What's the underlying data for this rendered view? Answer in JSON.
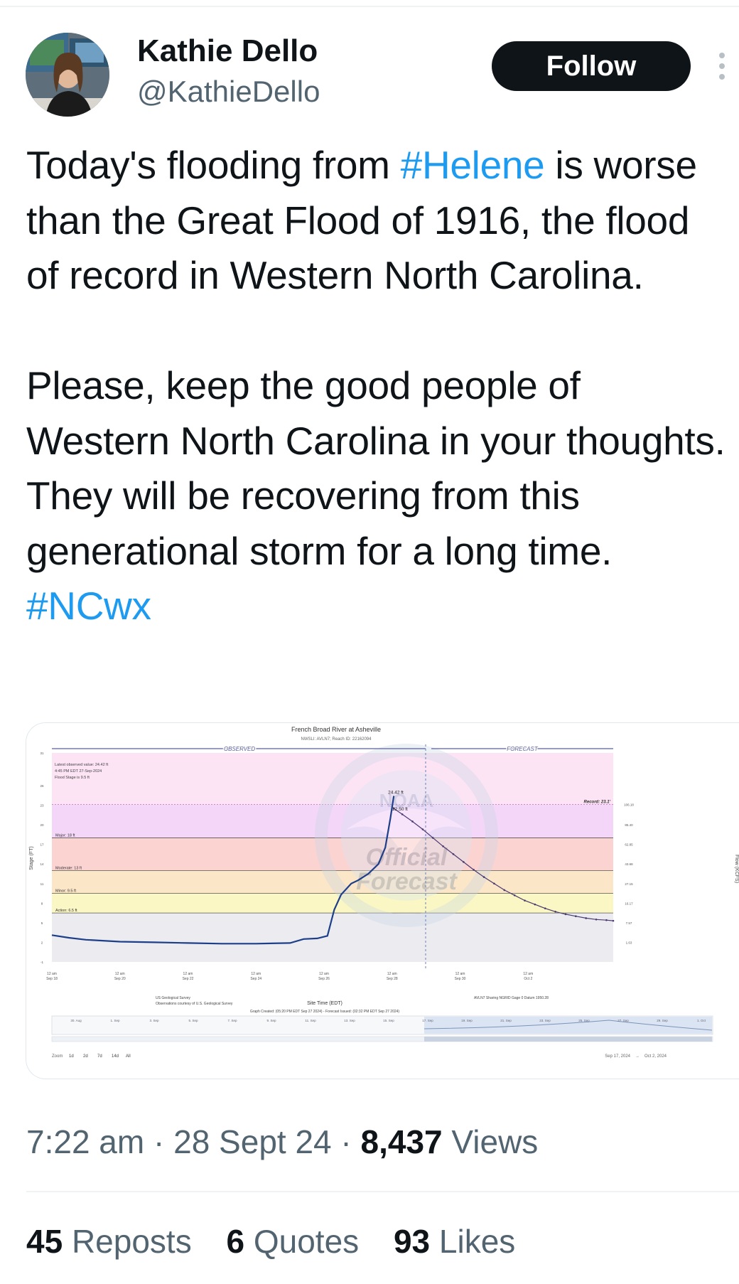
{
  "author": {
    "name": "Kathie Dello",
    "handle": "@KathieDello"
  },
  "follow_label": "Follow",
  "tweet": {
    "p1": {
      "t1": "Today's flooding from ",
      "tag1": "#Helene",
      "t2": " is worse than the Great Flood of 1916, the flood of record in Western North Carolina."
    },
    "p2": {
      "t1": "Please, keep the good people of Western North Carolina in your thoughts. They will be recovering from this generational storm for a long time. ",
      "tag2": "#NCwx"
    }
  },
  "hydrograph": {
    "title": "French Broad River at Asheville",
    "subtitle": "NWSLI: AVLN7; Reach ID: 22162094",
    "observed_label": "OBSERVED",
    "forecast_label": "FORECAST",
    "latest_box": [
      "Latest observed value: 24.42 ft",
      "4:45 PM EDT 27-Sep-2024",
      "Flood Stage is 9.5 ft"
    ],
    "ylabel_left": "Stage (FT)",
    "ylabel_right": "Flow (KCFS)",
    "stage_ticks": [
      "31",
      "26",
      "23",
      "20",
      "17",
      "14",
      "11",
      "8",
      "5",
      "2",
      "-1"
    ],
    "flow_ticks": [
      "106.18",
      "85.40",
      "62.85",
      "43.68",
      "27.15",
      "16.17",
      "7.57",
      "1.63"
    ],
    "categories": [
      {
        "name": "Record",
        "label": "Record: 23.1'",
        "value": 23.1,
        "color": "#fce4f5"
      },
      {
        "name": "Major",
        "label": "Major: 18 ft",
        "value": 18,
        "color": "#f3d6f8"
      },
      {
        "name": "Moderate",
        "label": "Moderate: 13 ft",
        "value": 13,
        "color": "#fbd4d2"
      },
      {
        "name": "Minor",
        "label": "Minor: 9.5 ft",
        "value": 9.5,
        "color": "#fbe6c7"
      },
      {
        "name": "Action",
        "label": "Action: 6.5 ft",
        "value": 6.5,
        "color": "#fbf7c4"
      }
    ],
    "x_ticks": [
      [
        "12 am",
        "Sep 18"
      ],
      [
        "12 am",
        "Sep 20"
      ],
      [
        "12 am",
        "Sep 22"
      ],
      [
        "12 am",
        "Sep 24"
      ],
      [
        "12 am",
        "Sep 26"
      ],
      [
        "12 am",
        "Sep 28"
      ],
      [
        "12 am",
        "Sep 30"
      ],
      [
        "12 am",
        "Oct 2"
      ]
    ],
    "peak_label": "24.42 ft",
    "forecast_peak_label": "22.50 ft",
    "xlabel": "Site Time (EDT)",
    "credit_left": "US Geological Survey",
    "credit_left2": "Observations courtesy of U.S. Geological Survey",
    "credit_right": "AVLN7 Sharing NGRID Gage 0 Datum 1950.28",
    "graph_created": "Graph Created: (05:20 PM EDT Sep 27 2024) - Forecast Issued: (02:32 PM EDT Sep 27 2024)",
    "watermark": [
      "NOAA",
      "Official",
      "Forecast"
    ],
    "nav_dates": [
      "30. Aug",
      "1. Sep",
      "3. Sep",
      "5. Sep",
      "7. Sep",
      "9. Sep",
      "11. Sep",
      "13. Sep",
      "15. Sep",
      "17. Sep",
      "19. Sep",
      "21. Sep",
      "23. Sep",
      "25. Sep",
      "27. Sep",
      "29. Sep",
      "1. Oct"
    ],
    "zoom_label": "Zoom",
    "zoom_options": [
      "1d",
      "2d",
      "7d",
      "14d",
      "All"
    ],
    "range_start": "Sep 17, 2024",
    "range_sep": "→",
    "range_end": "Oct 2, 2024"
  },
  "chart_data": {
    "type": "line",
    "title": "French Broad River at Asheville",
    "xlabel": "Site Time (EDT)",
    "ylabel": "Stage (FT)",
    "ylim": [
      -1,
      31
    ],
    "observed": [
      {
        "day": 0,
        "stage": 3.1
      },
      {
        "day": 0.5,
        "stage": 2.7
      },
      {
        "day": 1,
        "stage": 2.4
      },
      {
        "day": 2,
        "stage": 2.1
      },
      {
        "day": 3,
        "stage": 2.0
      },
      {
        "day": 4,
        "stage": 1.9
      },
      {
        "day": 5,
        "stage": 1.8
      },
      {
        "day": 6,
        "stage": 1.8
      },
      {
        "day": 7,
        "stage": 1.9
      },
      {
        "day": 7.4,
        "stage": 2.5
      },
      {
        "day": 7.8,
        "stage": 2.6
      },
      {
        "day": 8.1,
        "stage": 3.0
      },
      {
        "day": 8.3,
        "stage": 7.0
      },
      {
        "day": 8.5,
        "stage": 9.3
      },
      {
        "day": 8.8,
        "stage": 11.0
      },
      {
        "day": 9.0,
        "stage": 11.5
      },
      {
        "day": 9.3,
        "stage": 12.5
      },
      {
        "day": 9.6,
        "stage": 14.0
      },
      {
        "day": 9.8,
        "stage": 16.5
      },
      {
        "day": 9.95,
        "stage": 21.0
      },
      {
        "day": 10.05,
        "stage": 24.42
      }
    ],
    "forecast": [
      {
        "day": 10.05,
        "stage": 22.5
      },
      {
        "day": 10.3,
        "stage": 21.6
      },
      {
        "day": 10.6,
        "stage": 20.5
      },
      {
        "day": 10.9,
        "stage": 19.3
      },
      {
        "day": 11.2,
        "stage": 18.0
      },
      {
        "day": 11.5,
        "stage": 16.7
      },
      {
        "day": 11.8,
        "stage": 15.5
      },
      {
        "day": 12.1,
        "stage": 14.3
      },
      {
        "day": 12.4,
        "stage": 13.1
      },
      {
        "day": 12.7,
        "stage": 12.0
      },
      {
        "day": 13.0,
        "stage": 11.0
      },
      {
        "day": 13.3,
        "stage": 10.0
      },
      {
        "day": 13.6,
        "stage": 9.2
      },
      {
        "day": 13.9,
        "stage": 8.4
      },
      {
        "day": 14.2,
        "stage": 7.8
      },
      {
        "day": 14.5,
        "stage": 7.2
      },
      {
        "day": 14.8,
        "stage": 6.7
      },
      {
        "day": 15.1,
        "stage": 6.3
      },
      {
        "day": 15.4,
        "stage": 6.0
      },
      {
        "day": 15.7,
        "stage": 5.7
      },
      {
        "day": 16.0,
        "stage": 5.5
      },
      {
        "day": 16.3,
        "stage": 5.4
      },
      {
        "day": 16.5,
        "stage": 5.3
      }
    ]
  },
  "meta": {
    "time": "7:22 am",
    "sep1": " · ",
    "date": "28 Sept 24",
    "sep2": " · ",
    "views_count": "8,437",
    "views_label": " Views"
  },
  "stats": {
    "reposts_count": "45",
    "reposts_label": " Reposts",
    "quotes_count": "6",
    "quotes_label": " Quotes",
    "likes_count": "93",
    "likes_label": " Likes"
  }
}
